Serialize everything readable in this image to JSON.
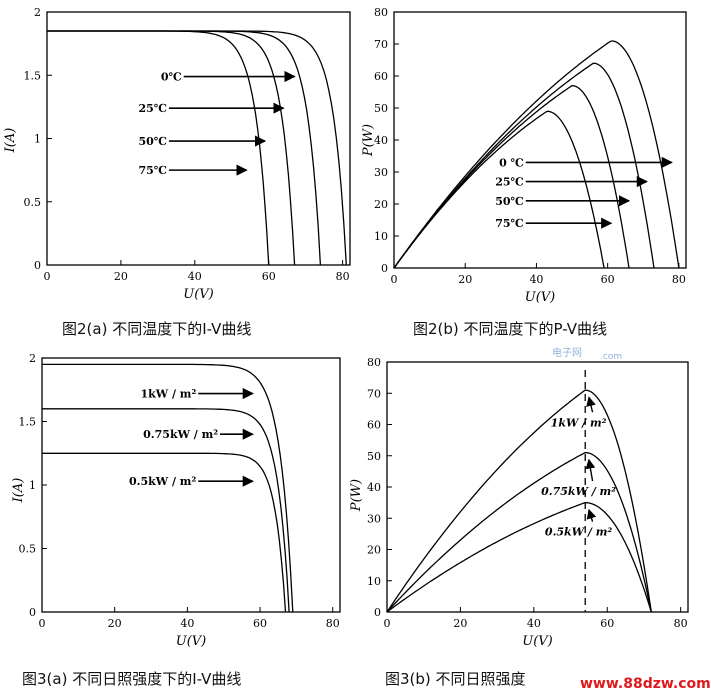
{
  "captions": {
    "a": "图2(a) 不同温度下的I-V曲线",
    "b": "图2(b) 不同温度下的P-V曲线",
    "c": "图3(a) 不同日照强度下的I-V曲线",
    "d": "图3(b) 不同日照强度"
  },
  "watermark": {
    "cn": "电子网",
    "url": ".com"
  },
  "site": "www.88dzw.com",
  "chart_data": [
    {
      "id": "fig2a",
      "type": "line",
      "xlabel": "U(V)",
      "ylabel": "I(A)",
      "xlim": [
        0,
        82
      ],
      "ylim": [
        0,
        2
      ],
      "xticks": [
        "0",
        "20",
        "40",
        "60",
        "80"
      ],
      "yticks": [
        "0",
        "0.5",
        "1",
        "1.5",
        "2"
      ],
      "series": [
        {
          "name": "0℃",
          "Isc": 1.85,
          "Voc": 81,
          "knee": 70
        },
        {
          "name": "25℃",
          "Isc": 1.85,
          "Voc": 74,
          "knee": 63
        },
        {
          "name": "50℃",
          "Isc": 1.85,
          "Voc": 67,
          "knee": 56
        },
        {
          "name": "75℃",
          "Isc": 1.85,
          "Voc": 60,
          "knee": 49
        }
      ],
      "annotations": [
        {
          "text": "0℃",
          "x0": 37,
          "y0": 1.49,
          "x1": 67,
          "y1": 1.49
        },
        {
          "text": "25℃",
          "x0": 33,
          "y0": 1.24,
          "x1": 64,
          "y1": 1.24
        },
        {
          "text": "50℃",
          "x0": 33,
          "y0": 0.98,
          "x1": 59,
          "y1": 0.98
        },
        {
          "text": "75℃",
          "x0": 33,
          "y0": 0.75,
          "x1": 54,
          "y1": 0.75
        }
      ],
      "arrow_color": "#000000"
    },
    {
      "id": "fig2b",
      "type": "line",
      "xlabel": "U(V)",
      "ylabel": "P(W)",
      "xlim": [
        0,
        82
      ],
      "ylim": [
        0,
        80
      ],
      "xticks": [
        "0",
        "20",
        "40",
        "60",
        "80"
      ],
      "yticks": [
        "0",
        "10",
        "20",
        "30",
        "40",
        "50",
        "60",
        "70",
        "80"
      ],
      "series": [
        {
          "name": "0℃",
          "Vmp": 61,
          "Pmax": 71,
          "Voc": 80
        },
        {
          "name": "25℃",
          "Vmp": 56,
          "Pmax": 64,
          "Voc": 73
        },
        {
          "name": "50℃",
          "Vmp": 50,
          "Pmax": 57,
          "Voc": 66
        },
        {
          "name": "75℃",
          "Vmp": 43,
          "Pmax": 49,
          "Voc": 59
        }
      ],
      "annotations": [
        {
          "text": "0 ℃",
          "x0": 37,
          "y0": 33,
          "x1": 78,
          "y1": 33
        },
        {
          "text": "25℃",
          "x0": 37,
          "y0": 27,
          "x1": 71,
          "y1": 27
        },
        {
          "text": "50℃",
          "x0": 37,
          "y0": 21,
          "x1": 66,
          "y1": 21
        },
        {
          "text": "75℃",
          "x0": 37,
          "y0": 14,
          "x1": 61,
          "y1": 14
        }
      ]
    },
    {
      "id": "fig3a",
      "type": "line",
      "xlabel": "U(V)",
      "ylabel": "I(A)",
      "xlim": [
        0,
        82
      ],
      "ylim": [
        0,
        2
      ],
      "xticks": [
        "0",
        "20",
        "40",
        "60",
        "80"
      ],
      "yticks": [
        "0",
        "0.5",
        "1",
        "1.5",
        "2"
      ],
      "series": [
        {
          "name": "1kW / m²",
          "Isc": 1.95,
          "Voc": 69,
          "knee": 58
        },
        {
          "name": "0.75kW / m²",
          "Isc": 1.6,
          "Voc": 68,
          "knee": 58
        },
        {
          "name": "0.5kW / m²",
          "Isc": 1.25,
          "Voc": 67,
          "knee": 58
        }
      ],
      "annotations": [
        {
          "text": "1kW / m²",
          "x0": 43,
          "y0": 1.72,
          "x1": 58,
          "y1": 1.72
        },
        {
          "text": "0.75kW / m²",
          "x0": 49,
          "y0": 1.4,
          "x1": 58,
          "y1": 1.4
        },
        {
          "text": "0.5kW / m²",
          "x0": 43,
          "y0": 1.03,
          "x1": 58,
          "y1": 1.03
        }
      ]
    },
    {
      "id": "fig3b",
      "type": "line",
      "xlabel": "U(V)",
      "ylabel": "P(W)",
      "xlim": [
        0,
        82
      ],
      "ylim": [
        0,
        80
      ],
      "xticks": [
        "0",
        "20",
        "40",
        "60",
        "80"
      ],
      "yticks": [
        "0",
        "10",
        "20",
        "30",
        "40",
        "50",
        "60",
        "70",
        "80"
      ],
      "series": [
        {
          "name": "1kW / m²",
          "Vmp": 54,
          "Pmax": 71,
          "Voc": 72
        },
        {
          "name": "0.75kW / m²",
          "Vmp": 54,
          "Pmax": 51,
          "Voc": 72
        },
        {
          "name": "0.5kW / m²",
          "Vmp": 54,
          "Pmax": 35,
          "Voc": 72
        }
      ],
      "mpp_dashed_x": 54,
      "annotations": [
        {
          "text": "1kW / m²",
          "x0": 56,
          "y0": 62,
          "x1": 55,
          "y1": 70
        },
        {
          "text": "0.75kW / m²",
          "x0": 56,
          "y0": 40,
          "x1": 55,
          "y1": 50
        },
        {
          "text": "0.5kW / m²",
          "x0": 56,
          "y0": 27,
          "x1": 55,
          "y1": 34
        }
      ]
    }
  ]
}
